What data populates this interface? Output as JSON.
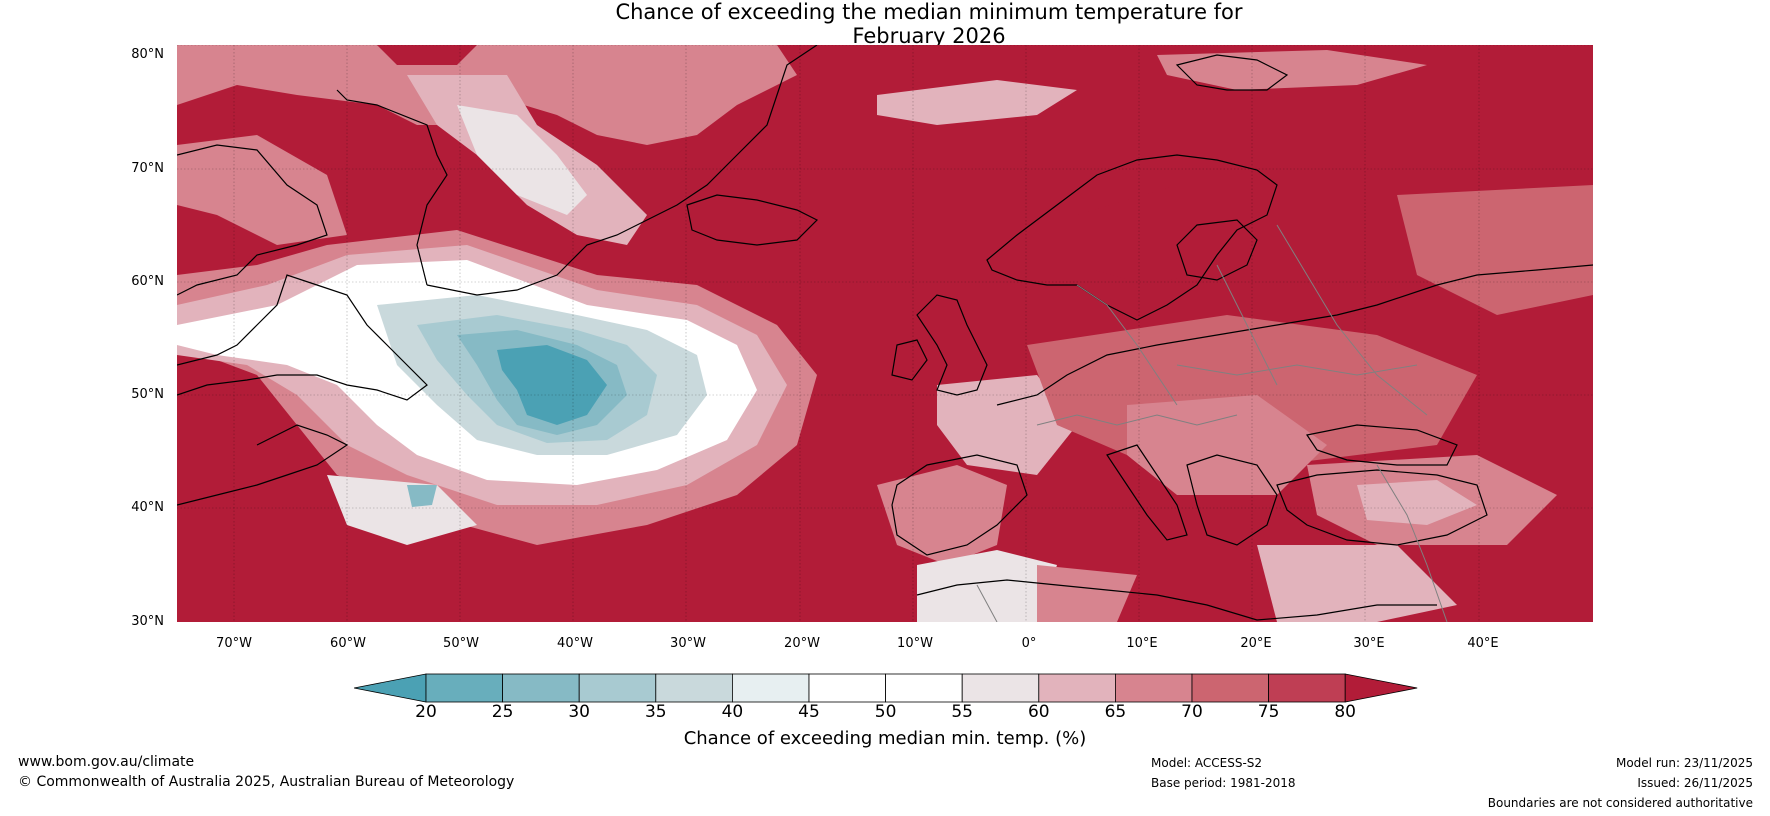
{
  "title": {
    "line1": "Chance of exceeding the median minimum temperature for",
    "line2": "February 2026"
  },
  "map": {
    "region": "North Atlantic and Europe",
    "lat_labels": [
      "80°N",
      "70°N",
      "60°N",
      "50°N",
      "40°N",
      "30°N"
    ],
    "lon_labels": [
      "70°W",
      "60°W",
      "50°W",
      "40°W",
      "30°W",
      "20°W",
      "10°W",
      "0°",
      "10°E",
      "20°E",
      "30°E",
      "40°E"
    ],
    "lat_range": [
      30,
      81
    ],
    "lon_range": [
      -75,
      50
    ]
  },
  "colorbar": {
    "ticks": [
      "20",
      "25",
      "30",
      "35",
      "40",
      "45",
      "50",
      "55",
      "60",
      "65",
      "70",
      "75",
      "80"
    ],
    "colors": [
      "#4ba1b4",
      "#68aebc",
      "#86bac5",
      "#a8cad1",
      "#c9d9dc",
      "#e7eff1",
      "#ffffff",
      "#ffffff",
      "#ebe4e6",
      "#e2b3bc",
      "#d7848f",
      "#cc6570",
      "#bf3e54",
      "#b21c38"
    ],
    "label": "Chance of exceeding median min. temp. (%)"
  },
  "footer": {
    "url": "www.bom.gov.au/climate",
    "copyright": "© Commonwealth of Australia 2025, Australian Bureau of Meteorology",
    "model": "Model: ACCESS-S2",
    "base_period": "Base period: 1981-2018",
    "model_run": "Model run: 23/11/2025",
    "issued": "Issued: 26/11/2025",
    "disclaimer": "Boundaries are not considered authoritative"
  }
}
